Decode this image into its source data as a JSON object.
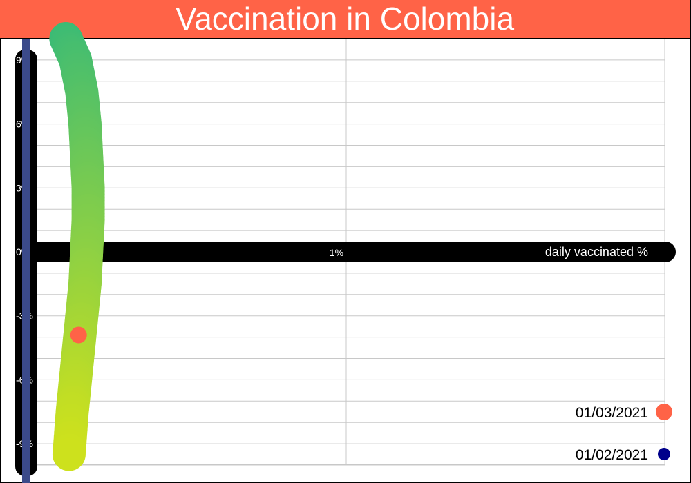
{
  "chart_data": {
    "type": "line",
    "title": "Vaccination in Colombia",
    "xlabel": "daily vaccinated %",
    "ylabel": "",
    "x_ticks": [
      "1%"
    ],
    "y_ticks": [
      "9%",
      "6%",
      "3%",
      "0%",
      "-3%",
      "-6%",
      "-9%"
    ],
    "xlim": [
      0,
      2
    ],
    "ylim": [
      -10,
      10
    ],
    "grid": true,
    "series": [
      {
        "x": [
          0.12,
          0.15,
          0.17,
          0.18,
          0.185,
          0.19,
          0.19,
          0.185,
          0.18,
          0.17,
          0.16,
          0.15,
          0.14,
          0.13
        ],
        "y": [
          10,
          9,
          7.5,
          6,
          4.5,
          3,
          1.5,
          0,
          -1.5,
          -3,
          -4.5,
          -6,
          -7.5,
          -9.5
        ],
        "color_start": "#3cbb75",
        "color_end": "#cde11d"
      }
    ],
    "markers": [
      {
        "label": "01/03/2021",
        "x": 0.16,
        "y": -3.9,
        "color": "#ff6347"
      }
    ],
    "legend_position": "bottom-right",
    "legend": [
      {
        "label": "01/03/2021",
        "color": "#ff6347"
      },
      {
        "label": "01/02/2021",
        "color": "#00008b"
      }
    ],
    "colors": {
      "title_bg": "#ff6347",
      "vertical_bar": "#3b4a8a",
      "axis_band": "#000000",
      "grid": "#c8c8c8"
    }
  }
}
